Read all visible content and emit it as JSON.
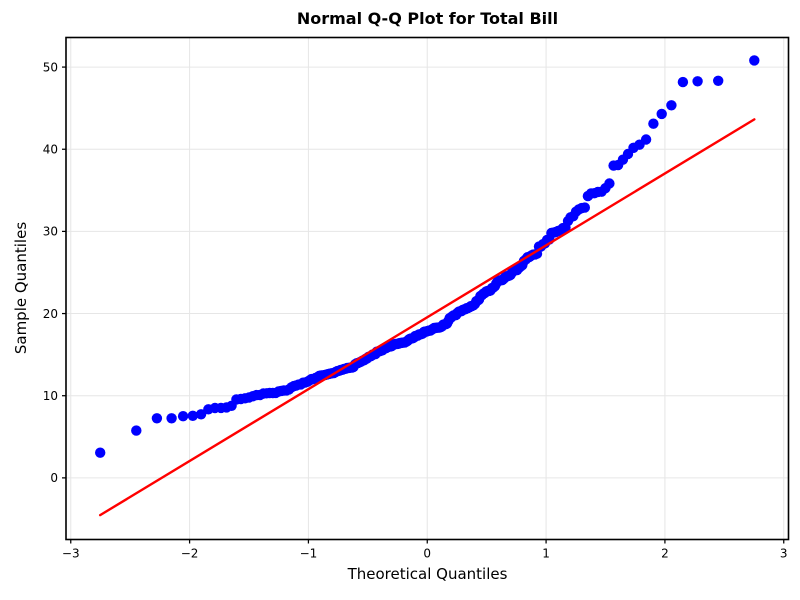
{
  "chart_data": {
    "type": "scatter",
    "subtype": "qq-plot",
    "title": "Normal Q-Q Plot for Total Bill",
    "xlabel": "Theoretical Quantiles",
    "ylabel": "Sample Quantiles",
    "xlim": [
      -3.04,
      3.04
    ],
    "ylim": [
      -7.5,
      53.6
    ],
    "xticks": [
      -3,
      -2,
      -1,
      0,
      1,
      2,
      3
    ],
    "yticks": [
      0,
      10,
      20,
      30,
      40,
      50
    ],
    "grid": true,
    "legend": false,
    "colors": {
      "marker": "#0000ff",
      "fit_line": "#ff0000",
      "grid": "#e6e6e6",
      "spine": "#000000",
      "text": "#000000"
    },
    "quantile_method": "filliben",
    "fit_line": {
      "slope": 8.75,
      "intercept": 19.55
    },
    "sample_values_sorted": [
      3.07,
      5.75,
      7.25,
      7.25,
      7.51,
      7.56,
      7.74,
      8.35,
      8.51,
      8.52,
      8.58,
      8.77,
      9.55,
      9.6,
      9.68,
      9.78,
      9.94,
      10.07,
      10.09,
      10.27,
      10.29,
      10.33,
      10.33,
      10.34,
      10.51,
      10.59,
      10.63,
      10.65,
      10.77,
      11.02,
      11.17,
      11.24,
      11.35,
      11.38,
      11.59,
      11.61,
      11.69,
      11.87,
      12.02,
      12.03,
      12.16,
      12.26,
      12.43,
      12.46,
      12.48,
      12.54,
      12.6,
      12.66,
      12.69,
      12.74,
      12.76,
      12.9,
      13.0,
      13.03,
      13.13,
      13.16,
      13.27,
      13.28,
      13.37,
      13.39,
      13.42,
      13.42,
      13.51,
      13.81,
      13.94,
      14.0,
      14.07,
      14.15,
      14.26,
      14.31,
      14.48,
      14.52,
      14.73,
      14.78,
      14.83,
      15.01,
      15.04,
      15.06,
      15.36,
      15.38,
      15.42,
      15.48,
      15.53,
      15.69,
      15.77,
      15.81,
      15.95,
      15.98,
      16.0,
      16.04,
      16.21,
      16.27,
      16.29,
      16.31,
      16.32,
      16.4,
      16.43,
      16.45,
      16.47,
      16.49,
      16.58,
      16.66,
      16.82,
      16.93,
      16.97,
      16.99,
      17.07,
      17.26,
      17.29,
      17.31,
      17.46,
      17.47,
      17.51,
      17.59,
      17.78,
      17.81,
      17.82,
      17.89,
      17.92,
      17.92,
      18.04,
      18.15,
      18.24,
      18.26,
      18.28,
      18.29,
      18.29,
      18.35,
      18.43,
      18.64,
      18.69,
      18.71,
      18.78,
      19.08,
      19.44,
      19.49,
      19.65,
      19.77,
      19.81,
      19.82,
      20.08,
      20.23,
      20.27,
      20.29,
      20.45,
      20.49,
      20.53,
      20.65,
      20.69,
      20.76,
      20.9,
      20.92,
      21.01,
      21.16,
      21.5,
      21.58,
      21.7,
      22.12,
      22.23,
      22.42,
      22.49,
      22.67,
      22.75,
      22.76,
      22.82,
      23.1,
      23.17,
      23.33,
      23.68,
      23.95,
      24.01,
      24.06,
      24.08,
      24.27,
      24.52,
      24.55,
      24.59,
      24.71,
      25.0,
      25.21,
      25.28,
      25.29,
      25.56,
      25.71,
      25.89,
      26.41,
      26.59,
      26.86,
      26.88,
      27.05,
      27.18,
      27.2,
      27.28,
      28.15,
      28.17,
      28.44,
      28.55,
      28.97,
      29.03,
      29.8,
      29.85,
      29.93,
      30.06,
      30.14,
      30.4,
      30.46,
      31.27,
      31.71,
      31.85,
      32.4,
      32.68,
      32.83,
      32.9,
      34.3,
      34.63,
      34.65,
      34.81,
      34.83,
      35.26,
      35.83,
      38.01,
      38.07,
      38.73,
      39.42,
      40.17,
      40.55,
      41.19,
      43.11,
      44.3,
      45.35,
      48.17,
      48.27,
      48.33,
      50.81
    ]
  }
}
